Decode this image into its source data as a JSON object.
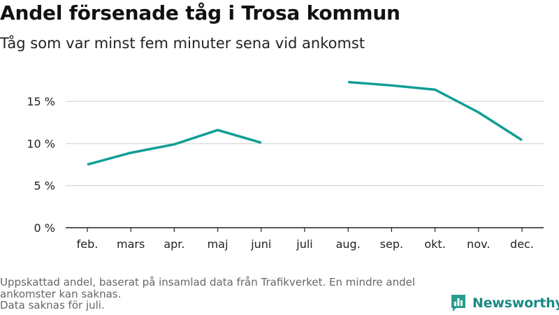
{
  "title": "Andel försenade tåg i Trosa kommun",
  "subtitle": "Tåg som var minst fem minuter sena vid ankomst",
  "footnote": {
    "line1": "Uppskattad andel, baserat på insamlad data från Trafikverket. En mindre andel ankomster kan saknas.",
    "line2": "Data saknas för juli."
  },
  "logo": {
    "text": "Newsworthy",
    "icon": "bar-chart-speech-icon"
  },
  "colors": {
    "line": "#0f9e95",
    "grid": "#dddddd",
    "axis": "#222222",
    "brand": "#1a8a86"
  },
  "chart_data": {
    "type": "line",
    "title": "Andel försenade tåg i Trosa kommun",
    "subtitle": "Tåg som var minst fem minuter sena vid ankomst",
    "categories": [
      "feb.",
      "mars",
      "apr.",
      "maj",
      "juni",
      "juli",
      "aug.",
      "sep.",
      "okt.",
      "nov.",
      "dec."
    ],
    "series": [
      {
        "values": [
          7.5,
          8.9,
          9.9,
          11.6,
          10.1,
          null,
          17.3,
          16.9,
          16.4,
          13.7,
          10.4
        ]
      }
    ],
    "y_ticks": [
      0,
      5,
      10,
      15
    ],
    "y_tick_labels": [
      "0 %",
      "5 %",
      "10 %",
      "15 %"
    ],
    "ylim": [
      0,
      19
    ],
    "grid": true,
    "legend": "none",
    "xlabel": "",
    "ylabel": ""
  }
}
